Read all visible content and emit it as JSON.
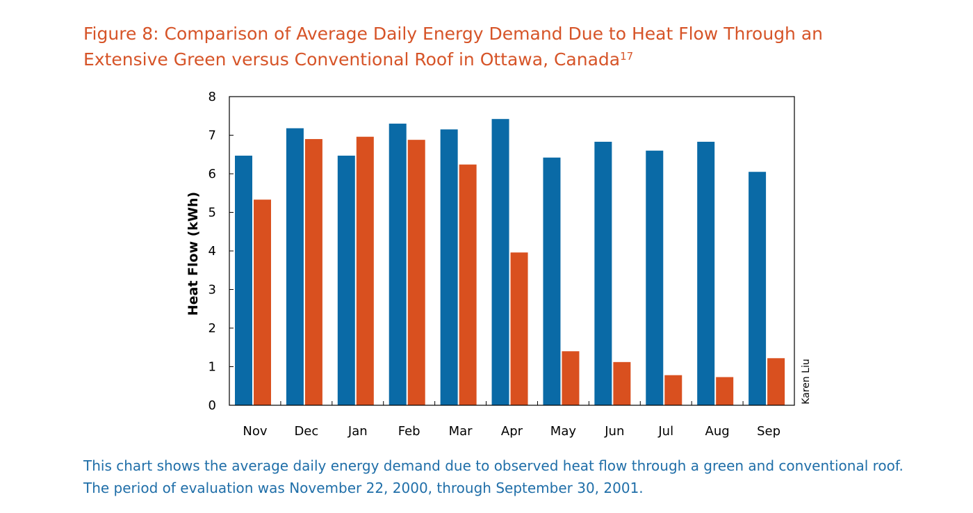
{
  "title": {
    "text": "Figure 8: Comparison of Average Daily Energy Demand Due to Heat Flow Through an Extensive Green versus Conventional Roof in Ottawa, Canada",
    "superscript": "17"
  },
  "caption": {
    "line1": "This chart shows the average daily energy demand due to observed heat flow through a green and conventional roof.",
    "line2": "The period of evaluation was November 22, 2000, through September 30, 2001."
  },
  "credit": "Karen Liu",
  "colors": {
    "title": "#d65428",
    "caption": "#1f6ea8",
    "conventional": "#0a6aa6",
    "green": "#d9501f"
  },
  "chart_data": {
    "type": "bar",
    "title": "",
    "xlabel": "",
    "ylabel": "Heat Flow (kWh)",
    "ylim": [
      0,
      8
    ],
    "yticks": [
      0,
      1,
      2,
      3,
      4,
      5,
      6,
      7,
      8
    ],
    "grid": false,
    "legend": "none",
    "categories": [
      "Nov",
      "Dec",
      "Jan",
      "Feb",
      "Mar",
      "Apr",
      "May",
      "Jun",
      "Jul",
      "Aug",
      "Sep"
    ],
    "series": [
      {
        "color": "#0a6aa6",
        "values": [
          6.47,
          7.18,
          6.47,
          7.3,
          7.15,
          7.42,
          6.42,
          6.83,
          6.6,
          6.83,
          6.05
        ]
      },
      {
        "color": "#d9501f",
        "values": [
          5.33,
          6.9,
          6.96,
          6.88,
          6.24,
          3.96,
          1.4,
          1.12,
          0.78,
          0.73,
          1.22
        ]
      }
    ]
  }
}
